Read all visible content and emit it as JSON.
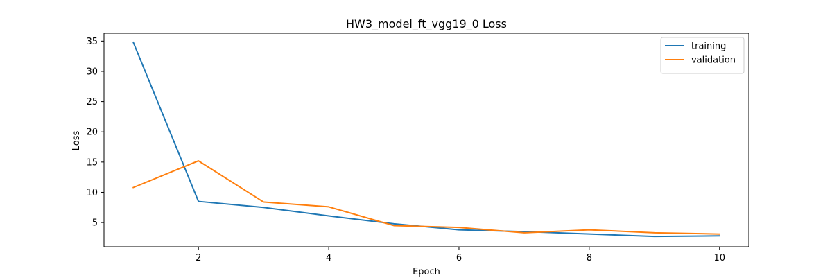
{
  "chart_data": {
    "type": "line",
    "title": "HW3_model_ft_vgg19_0 Loss",
    "xlabel": "Epoch",
    "ylabel": "Loss",
    "x": [
      1,
      2,
      3,
      4,
      5,
      6,
      7,
      8,
      9,
      10
    ],
    "series": [
      {
        "name": "training",
        "color": "#1f77b4",
        "values": [
          34.8,
          8.5,
          7.5,
          6.1,
          4.8,
          3.8,
          3.5,
          3.1,
          2.7,
          2.8
        ]
      },
      {
        "name": "validation",
        "color": "#ff7f0e",
        "values": [
          10.8,
          15.2,
          8.4,
          7.6,
          4.5,
          4.2,
          3.3,
          3.8,
          3.3,
          3.1
        ]
      }
    ],
    "xlim": [
      0.55,
      10.45
    ],
    "ylim": [
      1.0,
      36.3
    ],
    "xticks": [
      2,
      4,
      6,
      8,
      10
    ],
    "yticks": [
      5,
      10,
      15,
      20,
      25,
      30,
      35
    ],
    "grid": false,
    "legend_position": "upper right"
  }
}
